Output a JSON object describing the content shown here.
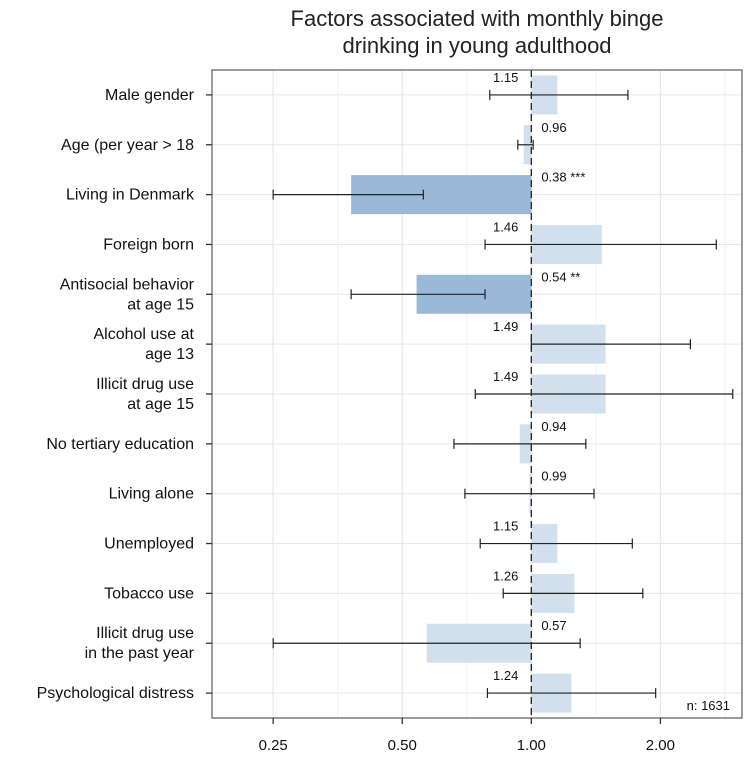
{
  "chart_data": {
    "type": "bar",
    "title_lines": [
      "Factors associated with monthly binge",
      "drinking in young adulthood"
    ],
    "x_scale": "log2",
    "xlim": [
      0.18,
      3.1
    ],
    "x_ticks": [
      0.25,
      0.5,
      1.0,
      2.0
    ],
    "x_tick_labels": [
      "0.25",
      "0.50",
      "1.00",
      "2.00"
    ],
    "reference_line": 1.0,
    "grid": true,
    "annotation": "n: 1631",
    "colors": {
      "significant": "#9ab8d8",
      "nonsignificant": "#d2e0ee",
      "errorbar": "#222222",
      "panel_border": "#666666",
      "grid": "#e6e6e6"
    },
    "rows": [
      {
        "lines": [
          "Male gender"
        ],
        "value": 1.15,
        "ci": [
          0.8,
          1.68
        ],
        "label": "1.15",
        "label_side": "left",
        "significant": false
      },
      {
        "lines": [
          "Age (per year > 18"
        ],
        "value": 0.96,
        "ci": [
          0.93,
          1.01
        ],
        "label": "0.96",
        "label_side": "right",
        "significant": false
      },
      {
        "lines": [
          "Living in Denmark"
        ],
        "value": 0.38,
        "ci": [
          0.25,
          0.56
        ],
        "label": "0.38 ***",
        "label_side": "right",
        "significant": true
      },
      {
        "lines": [
          "Foreign born"
        ],
        "value": 1.46,
        "ci": [
          0.78,
          2.7
        ],
        "label": "1.46",
        "label_side": "left",
        "significant": false
      },
      {
        "lines": [
          "Antisocial behavior",
          "at age 15"
        ],
        "value": 0.54,
        "ci": [
          0.38,
          0.78
        ],
        "label": "0.54 **",
        "label_side": "right",
        "significant": true
      },
      {
        "lines": [
          "Alcohol use at",
          "age 13"
        ],
        "value": 1.49,
        "ci": [
          1.0,
          2.35
        ],
        "label": "1.49",
        "label_side": "left",
        "significant": false
      },
      {
        "lines": [
          "Illicit drug use",
          "at age 15"
        ],
        "value": 1.49,
        "ci": [
          0.74,
          2.95
        ],
        "label": "1.49",
        "label_side": "left",
        "significant": false
      },
      {
        "lines": [
          "No tertiary education"
        ],
        "value": 0.94,
        "ci": [
          0.66,
          1.34
        ],
        "label": "0.94",
        "label_side": "right",
        "significant": false
      },
      {
        "lines": [
          "Living alone"
        ],
        "value": 0.99,
        "ci": [
          0.7,
          1.4
        ],
        "label": "0.99",
        "label_side": "right",
        "significant": false
      },
      {
        "lines": [
          "Unemployed"
        ],
        "value": 1.15,
        "ci": [
          0.76,
          1.72
        ],
        "label": "1.15",
        "label_side": "left",
        "significant": false
      },
      {
        "lines": [
          "Tobacco use"
        ],
        "value": 1.26,
        "ci": [
          0.86,
          1.82
        ],
        "label": "1.26",
        "label_side": "left",
        "significant": false
      },
      {
        "lines": [
          "Illicit drug use",
          "in the past year"
        ],
        "value": 0.57,
        "ci": [
          0.25,
          1.3
        ],
        "label": "0.57",
        "label_side": "right",
        "significant": false
      },
      {
        "lines": [
          "Psychological distress"
        ],
        "value": 1.24,
        "ci": [
          0.79,
          1.95
        ],
        "label": "1.24",
        "label_side": "left",
        "significant": false
      }
    ]
  }
}
